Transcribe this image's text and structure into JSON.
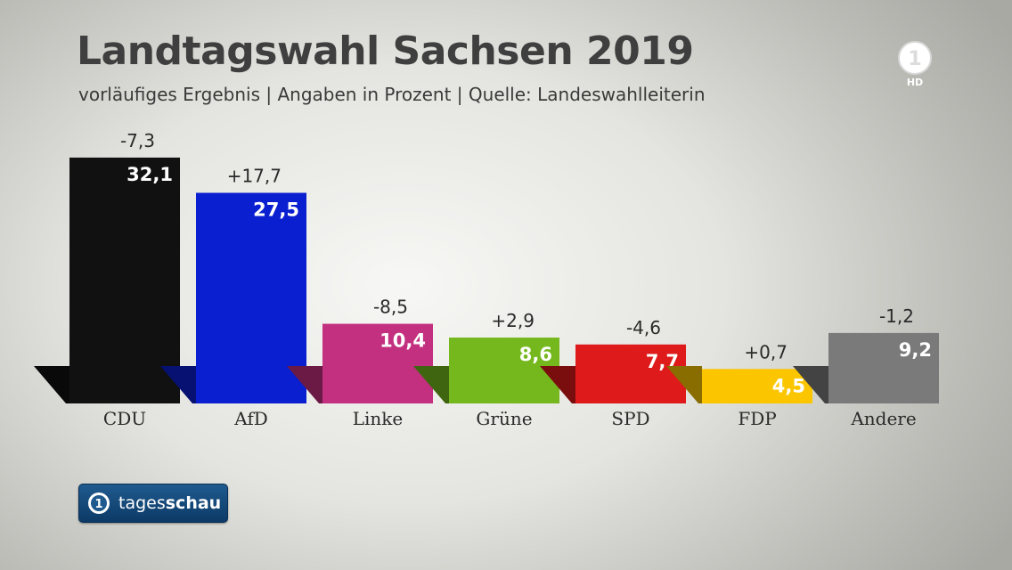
{
  "header": {
    "title": "Landtagswahl Sachsen 2019",
    "subtitle": "vorläufiges Ergebnis | Angaben in Prozent | Quelle: Landeswahlleiterin"
  },
  "channel": {
    "logo_icon": "ard-one-icon",
    "logo_text": "1",
    "hd_label": "HD"
  },
  "brand": {
    "icon": "ard-one-icon",
    "prefix": "tages",
    "suffix": "schau"
  },
  "chart_data": {
    "type": "bar",
    "title": "Landtagswahl Sachsen 2019",
    "subtitle": "vorläufiges Ergebnis | Angaben in Prozent | Quelle: Landeswahlleiterin",
    "categories": [
      "CDU",
      "AfD",
      "Linke",
      "Grüne",
      "SPD",
      "FDP",
      "Andere"
    ],
    "values": [
      32.1,
      27.5,
      10.4,
      8.6,
      7.7,
      4.5,
      9.2
    ],
    "value_labels": [
      "32,1",
      "27,5",
      "10,4",
      "8,6",
      "7,7",
      "4,5",
      "9,2"
    ],
    "changes": [
      -7.3,
      17.7,
      -8.5,
      2.9,
      -4.6,
      0.7,
      -1.2
    ],
    "change_labels": [
      "-7,3",
      "+17,7",
      "-8,5",
      "+2,9",
      "-4,6",
      "+0,7",
      "-1,2"
    ],
    "colors": [
      "#111111",
      "#0a1fd0",
      "#c2307f",
      "#74b81d",
      "#de1a1a",
      "#fbc600",
      "#7a7a7a"
    ],
    "xlabel": "",
    "ylabel": "",
    "grid": false,
    "legend": "none"
  }
}
